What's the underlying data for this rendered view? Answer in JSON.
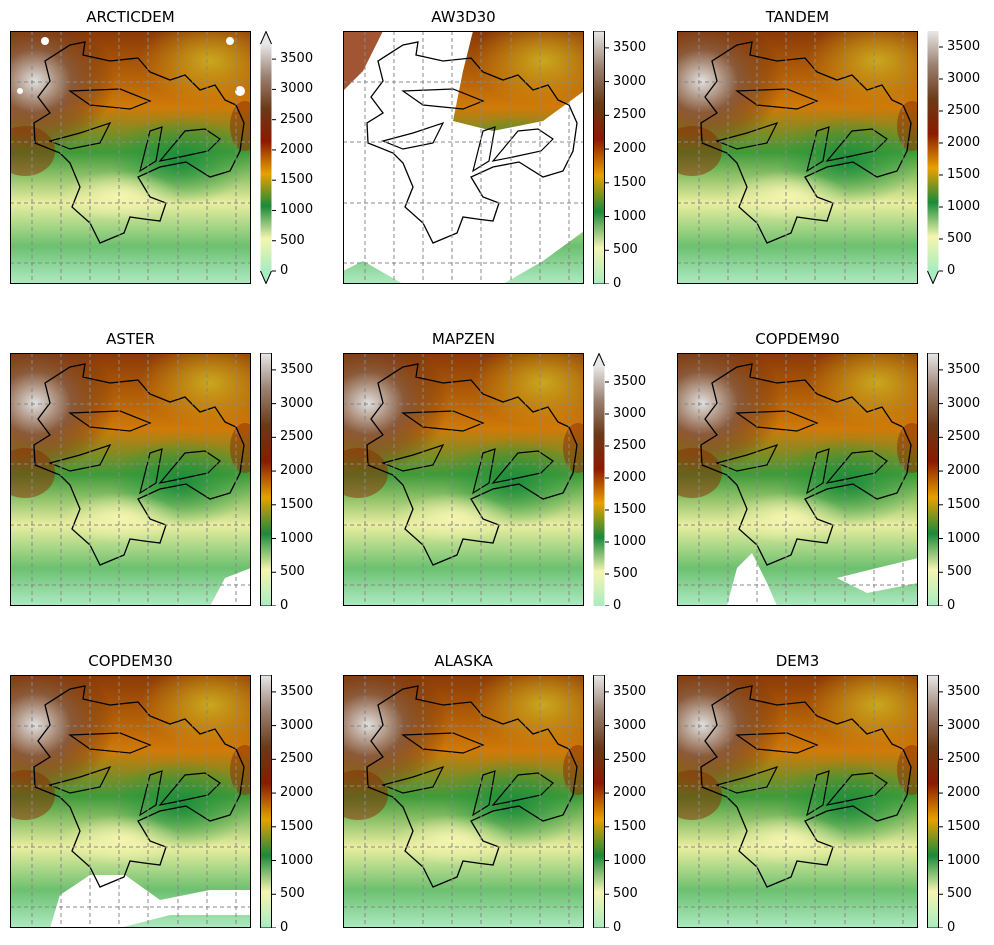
{
  "figure": {
    "colorbar_ticks": [
      "0",
      "500",
      "1000",
      "1500",
      "2000",
      "2500",
      "3000",
      "3500"
    ],
    "colorbar_range": [
      0,
      3750
    ],
    "colormap_stops": [
      "#a8ecc0",
      "#f5f5b0",
      "#1a8a3a",
      "#e8a000",
      "#8b1a00",
      "#6a3a18",
      "#9a8070",
      "#e8e8e8"
    ],
    "panels": [
      {
        "title": "ARCTICDEM",
        "extend": "both",
        "white_gaps": "sparse"
      },
      {
        "title": "AW3D30",
        "extend": "neither",
        "white_gaps": "extensive"
      },
      {
        "title": "TANDEM",
        "extend": "min",
        "white_gaps": "none"
      },
      {
        "title": "ASTER",
        "extend": "neither",
        "white_gaps": "bottom-right"
      },
      {
        "title": "MAPZEN",
        "extend": "max",
        "white_gaps": "none"
      },
      {
        "title": "COPDEM90",
        "extend": "neither",
        "white_gaps": "bottom"
      },
      {
        "title": "COPDEM30",
        "extend": "neither",
        "white_gaps": "bottom-left"
      },
      {
        "title": "ALASKA",
        "extend": "neither",
        "white_gaps": "none"
      },
      {
        "title": "DEM3",
        "extend": "neither",
        "white_gaps": "none"
      }
    ]
  }
}
